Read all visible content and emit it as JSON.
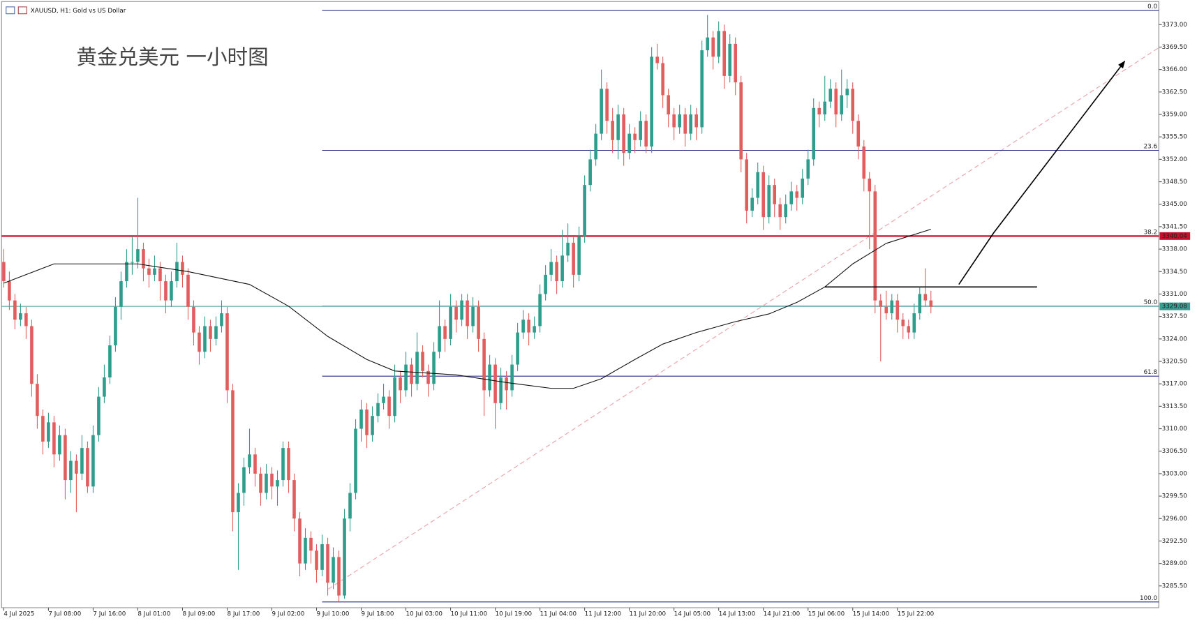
{
  "header": "XAUUSD, H1:  Gold vs US Dollar",
  "chart_data": {
    "type": "candlestick",
    "title": "黄金兑美元 一小时图",
    "up_color": "#2e9d8c",
    "down_color": "#e25d5d",
    "categories": [
      "4 Jul 2025",
      null,
      null,
      null,
      null,
      null,
      null,
      null,
      "7 Jul 08:00",
      null,
      null,
      null,
      null,
      null,
      null,
      null,
      "7 Jul 16:00",
      null,
      null,
      null,
      null,
      null,
      null,
      null,
      "8 Jul 01:00",
      null,
      null,
      null,
      null,
      null,
      null,
      null,
      "8 Jul 09:00",
      null,
      null,
      null,
      null,
      null,
      null,
      null,
      "8 Jul 17:00",
      null,
      null,
      null,
      null,
      null,
      null,
      null,
      "9 Jul 02:00",
      null,
      null,
      null,
      null,
      null,
      null,
      null,
      "9 Jul 10:00",
      null,
      null,
      null,
      null,
      null,
      null,
      null,
      "9 Jul 18:00",
      null,
      null,
      null,
      null,
      null,
      null,
      null,
      "10 Jul 03:00",
      null,
      null,
      null,
      null,
      null,
      null,
      null,
      "10 Jul 11:00",
      null,
      null,
      null,
      null,
      null,
      null,
      null,
      "10 Jul 19:00",
      null,
      null,
      null,
      null,
      null,
      null,
      null,
      "11 Jul 04:00",
      null,
      null,
      null,
      null,
      null,
      null,
      null,
      "11 Jul 12:00",
      null,
      null,
      null,
      null,
      null,
      null,
      null,
      "11 Jul 20:00",
      null,
      null,
      null,
      null,
      null,
      null,
      null,
      "14 Jul 05:00",
      null,
      null,
      null,
      null,
      null,
      null,
      null,
      "14 Jul 13:00",
      null,
      null,
      null,
      null,
      null,
      null,
      null,
      "14 Jul 21:00",
      null,
      null,
      null,
      null,
      null,
      null,
      null,
      "15 Jul 06:00",
      null,
      null,
      null,
      null,
      null,
      null,
      null,
      "15 Jul 14:00",
      null,
      null,
      null,
      null,
      null,
      null,
      null,
      "15 Jul 22:00",
      null,
      null,
      null,
      null,
      null,
      null
    ],
    "ohlc": [
      [
        3336,
        3338,
        3332,
        3333
      ],
      [
        3333,
        3334.5,
        3328.5,
        3330
      ],
      [
        3330,
        3331,
        3325.5,
        3327
      ],
      [
        3327,
        3329.5,
        3326,
        3328
      ],
      [
        3328,
        3329,
        3324,
        3326
      ],
      [
        3326,
        3327,
        3315,
        3317
      ],
      [
        3317,
        3318.5,
        3310,
        3312
      ],
      [
        3312,
        3313,
        3306,
        3308
      ],
      [
        3308,
        3312.5,
        3307,
        3311
      ],
      [
        3311,
        3312,
        3304,
        3306
      ],
      [
        3306,
        3310.5,
        3305,
        3309
      ],
      [
        3309,
        3310,
        3299,
        3302
      ],
      [
        3302,
        3306.5,
        3300,
        3305
      ],
      [
        3305,
        3306,
        3297,
        3303
      ],
      [
        3303,
        3309,
        3302,
        3307
      ],
      [
        3307,
        3308,
        3300,
        3301
      ],
      [
        3301,
        3310.5,
        3300,
        3309
      ],
      [
        3309,
        3316.5,
        3308,
        3315
      ],
      [
        3315,
        3320,
        3314,
        3318
      ],
      [
        3318,
        3324.5,
        3317,
        3323
      ],
      [
        3323,
        3330.5,
        3322,
        3329
      ],
      [
        3329,
        3334.5,
        3327,
        3333
      ],
      [
        3333,
        3338,
        3332,
        3336
      ],
      [
        3336,
        3340,
        3334,
        3336
      ],
      [
        3336,
        3346,
        3335,
        3338
      ],
      [
        3338,
        3339,
        3333,
        3335
      ],
      [
        3335,
        3336.5,
        3332,
        3334
      ],
      [
        3334,
        3337,
        3333,
        3335
      ],
      [
        3335,
        3336,
        3330,
        3333
      ],
      [
        3333,
        3334,
        3328,
        3330
      ],
      [
        3330,
        3334.5,
        3329,
        3333
      ],
      [
        3333,
        3339,
        3332,
        3336
      ],
      [
        3336,
        3337,
        3332,
        3334
      ],
      [
        3334,
        3335,
        3327,
        3329
      ],
      [
        3329,
        3330,
        3323,
        3325
      ],
      [
        3325,
        3326,
        3320,
        3322
      ],
      [
        3322,
        3327.5,
        3321,
        3326
      ],
      [
        3326,
        3327,
        3322,
        3324
      ],
      [
        3324,
        3327.5,
        3323,
        3326
      ],
      [
        3326,
        3330,
        3325,
        3328
      ],
      [
        3328,
        3329,
        3314,
        3316
      ],
      [
        3316,
        3317,
        3294,
        3297
      ],
      [
        3297,
        3301.5,
        3288,
        3300
      ],
      [
        3300,
        3305.5,
        3298,
        3304
      ],
      [
        3304,
        3310,
        3303,
        3306
      ],
      [
        3306,
        3307,
        3301,
        3303
      ],
      [
        3303,
        3304,
        3298,
        3300
      ],
      [
        3300,
        3304.5,
        3299,
        3303
      ],
      [
        3303,
        3304,
        3299,
        3301
      ],
      [
        3301,
        3303.5,
        3298,
        3302
      ],
      [
        3302,
        3308,
        3301,
        3307
      ],
      [
        3307,
        3308,
        3300,
        3302
      ],
      [
        3302,
        3303,
        3294,
        3296
      ],
      [
        3296,
        3297,
        3287,
        3289
      ],
      [
        3289,
        3294.5,
        3288,
        3293
      ],
      [
        3293,
        3294,
        3289,
        3291
      ],
      [
        3291,
        3292,
        3286,
        3288
      ],
      [
        3288,
        3293.5,
        3287,
        3292
      ],
      [
        3292,
        3293,
        3284,
        3286
      ],
      [
        3286,
        3291.5,
        3285,
        3290
      ],
      [
        3290,
        3291,
        3283,
        3284
      ],
      [
        3284,
        3297.5,
        3283.5,
        3296
      ],
      [
        3296,
        3301.5,
        3294,
        3300
      ],
      [
        3300,
        3311.5,
        3299,
        3310
      ],
      [
        3310,
        3314.5,
        3308,
        3313
      ],
      [
        3313,
        3314,
        3307,
        3309
      ],
      [
        3309,
        3313.5,
        3308,
        3312
      ],
      [
        3312,
        3315.5,
        3311,
        3314
      ],
      [
        3314,
        3317,
        3313,
        3315
      ],
      [
        3315,
        3316,
        3310,
        3312
      ],
      [
        3312,
        3320,
        3311,
        3318
      ],
      [
        3318,
        3319,
        3314,
        3316
      ],
      [
        3316,
        3322,
        3315,
        3320
      ],
      [
        3320,
        3321,
        3315,
        3317
      ],
      [
        3317,
        3325,
        3316,
        3322
      ],
      [
        3322,
        3323,
        3318,
        3319
      ],
      [
        3319,
        3320,
        3315,
        3317
      ],
      [
        3317,
        3323.5,
        3316,
        3322
      ],
      [
        3322,
        3330,
        3321,
        3326
      ],
      [
        3326,
        3327,
        3322,
        3324
      ],
      [
        3324,
        3331,
        3323,
        3329
      ],
      [
        3329,
        3330,
        3325,
        3327
      ],
      [
        3327,
        3331,
        3326,
        3330
      ],
      [
        3330,
        3331,
        3324,
        3326
      ],
      [
        3326,
        3330.5,
        3325,
        3329
      ],
      [
        3329,
        3330,
        3322,
        3324
      ],
      [
        3324,
        3325,
        3312,
        3316
      ],
      [
        3316,
        3321.5,
        3315,
        3320
      ],
      [
        3320,
        3321,
        3310,
        3314
      ],
      [
        3314,
        3319.5,
        3313,
        3318
      ],
      [
        3318,
        3319,
        3313,
        3316
      ],
      [
        3316,
        3321.5,
        3315,
        3320
      ],
      [
        3320,
        3326.5,
        3319,
        3325
      ],
      [
        3325,
        3328.5,
        3324,
        3327
      ],
      [
        3327,
        3328,
        3323,
        3325
      ],
      [
        3325,
        3327.5,
        3324,
        3326
      ],
      [
        3326,
        3332.5,
        3325,
        3331
      ],
      [
        3331,
        3335.5,
        3330,
        3334
      ],
      [
        3334,
        3338,
        3333,
        3336
      ],
      [
        3336,
        3337,
        3331,
        3333
      ],
      [
        3333,
        3341,
        3332,
        3337
      ],
      [
        3337,
        3342,
        3336,
        3339
      ],
      [
        3339,
        3340,
        3332,
        3334
      ],
      [
        3334,
        3341.5,
        3333,
        3340
      ],
      [
        3340,
        3349.5,
        3339,
        3348
      ],
      [
        3348,
        3353.5,
        3347,
        3352
      ],
      [
        3352,
        3357.5,
        3351,
        3356
      ],
      [
        3356,
        3366,
        3355,
        3363
      ],
      [
        3363,
        3364,
        3356,
        3358
      ],
      [
        3358,
        3360,
        3353,
        3355
      ],
      [
        3355,
        3360.5,
        3352,
        3359
      ],
      [
        3359,
        3360,
        3351,
        3353
      ],
      [
        3353,
        3357.5,
        3352,
        3356
      ],
      [
        3356,
        3357,
        3353,
        3355
      ],
      [
        3355,
        3359.5,
        3354,
        3358
      ],
      [
        3358,
        3359,
        3353,
        3354
      ],
      [
        3354,
        3369.5,
        3353,
        3368
      ],
      [
        3368,
        3370,
        3366,
        3367
      ],
      [
        3367,
        3368,
        3360,
        3362
      ],
      [
        3362,
        3363,
        3357,
        3359
      ],
      [
        3359,
        3360,
        3355,
        3357
      ],
      [
        3357,
        3360.5,
        3356,
        3359
      ],
      [
        3359,
        3360,
        3354,
        3356
      ],
      [
        3356,
        3360.5,
        3355,
        3359
      ],
      [
        3359,
        3360,
        3355,
        3357
      ],
      [
        3357,
        3370.5,
        3356,
        3369
      ],
      [
        3369,
        3374.5,
        3368,
        3371
      ],
      [
        3371,
        3372,
        3366,
        3368
      ],
      [
        3368,
        3373.5,
        3367,
        3372
      ],
      [
        3372,
        3373,
        3363,
        3365
      ],
      [
        3365,
        3371.5,
        3364,
        3370
      ],
      [
        3370,
        3371,
        3362,
        3364
      ],
      [
        3364,
        3365,
        3350,
        3352
      ],
      [
        3352,
        3353,
        3342,
        3344
      ],
      [
        3344,
        3347.5,
        3343,
        3346
      ],
      [
        3346,
        3351.5,
        3345,
        3350
      ],
      [
        3350,
        3351,
        3341,
        3343
      ],
      [
        3343,
        3349.5,
        3342,
        3348
      ],
      [
        3348,
        3349,
        3343,
        3345
      ],
      [
        3345,
        3346,
        3341,
        3343
      ],
      [
        3343,
        3346.5,
        3342,
        3345
      ],
      [
        3345,
        3348.5,
        3344,
        3347
      ],
      [
        3347,
        3348,
        3344,
        3346
      ],
      [
        3346,
        3350.5,
        3345,
        3349
      ],
      [
        3349,
        3353.5,
        3348,
        3352
      ],
      [
        3352,
        3361.5,
        3351,
        3360
      ],
      [
        3360,
        3361,
        3357,
        3359
      ],
      [
        3359,
        3365,
        3358,
        3361
      ],
      [
        3361,
        3364.5,
        3360,
        3363
      ],
      [
        3363,
        3364,
        3357,
        3359
      ],
      [
        3359,
        3366,
        3358,
        3362
      ],
      [
        3362,
        3364.5,
        3360,
        3363
      ],
      [
        3363,
        3364,
        3356,
        3358
      ],
      [
        3358,
        3359,
        3352,
        3354
      ],
      [
        3354,
        3355,
        3347,
        3349
      ],
      [
        3349,
        3350,
        3338,
        3347
      ],
      [
        3347,
        3348,
        3328,
        3330
      ],
      [
        3330,
        3331,
        3320.5,
        3329
      ],
      [
        3329,
        3331.5,
        3327,
        3328
      ],
      [
        3328,
        3331,
        3327,
        3330
      ],
      [
        3330,
        3331,
        3325,
        3327
      ],
      [
        3327,
        3328,
        3324,
        3326
      ],
      [
        3326,
        3327,
        3324,
        3325
      ],
      [
        3325,
        3329.5,
        3324,
        3328
      ],
      [
        3328,
        3332,
        3327,
        3331
      ],
      [
        3331,
        3335,
        3329,
        3330
      ],
      [
        3330,
        3331.5,
        3328,
        3329
      ]
    ],
    "moving_average": {
      "color": "#111111",
      "x": [
        0,
        9,
        24,
        33,
        44,
        51,
        58,
        65,
        70,
        81,
        90,
        98,
        102,
        107,
        113,
        118,
        124,
        131,
        137,
        142,
        147,
        152,
        158,
        166
      ],
      "values": [
        3332.7,
        3335.7,
        3335.7,
        3334.5,
        3332.5,
        3329.1,
        3324.4,
        3320.8,
        3319.0,
        3318.4,
        3317.2,
        3316.3,
        3316.3,
        3317.8,
        3320.8,
        3323.2,
        3325.0,
        3326.7,
        3327.9,
        3329.7,
        3332.1,
        3335.7,
        3338.9,
        3341.1
      ]
    },
    "fibonacci": {
      "color": "#2b2b8a",
      "x_start": 57,
      "levels": [
        {
          "label": "0.0",
          "value": 3375.2
        },
        {
          "label": "23.6",
          "value": 3353.4
        },
        {
          "label": "38.2",
          "value": 3340.0
        },
        {
          "label": "50.0",
          "value": 3329.1
        },
        {
          "label": "61.8",
          "value": 3318.2
        },
        {
          "label": "100.0",
          "value": 3283.0
        }
      ]
    },
    "price_lines": [
      {
        "value": 3340.04,
        "color": "#c8102e"
      },
      {
        "value": 3329.08,
        "color": "#3a9d8f"
      }
    ],
    "trendline": {
      "color": "#e8a0a8",
      "x": [
        58.1,
        206.8
      ],
      "values": [
        3285.0,
        3369.4
      ]
    },
    "resistance_line": {
      "color": "#000000",
      "x": [
        147,
        185
      ],
      "values": [
        3332.1,
        3332.1
      ]
    },
    "arrow": {
      "color": "#000000",
      "x": [
        171,
        177.2,
        200.7
      ],
      "values": [
        3332.5,
        3340.5,
        3367.3
      ]
    },
    "xlim": [
      -0.4,
      206.8
    ],
    "ylim": [
      3282.1,
      3376.6
    ],
    "yticks": [
      {
        "value": 3373.0,
        "label": "3373.00"
      },
      {
        "value": 3369.5,
        "label": "3369.50"
      },
      {
        "value": 3366.0,
        "label": "3366.00"
      },
      {
        "value": 3362.5,
        "label": "3362.50"
      },
      {
        "value": 3359.0,
        "label": "3359.00"
      },
      {
        "value": 3355.5,
        "label": "3355.50"
      },
      {
        "value": 3352.0,
        "label": "3352.00"
      },
      {
        "value": 3348.5,
        "label": "3348.50"
      },
      {
        "value": 3345.0,
        "label": "3345.00"
      },
      {
        "value": 3341.5,
        "label": "3341.50"
      },
      {
        "value": 3338.0,
        "label": "3338.00"
      },
      {
        "value": 3334.5,
        "label": "3334.50"
      },
      {
        "value": 3331.0,
        "label": "3331.00"
      },
      {
        "value": 3327.5,
        "label": "3327.50"
      },
      {
        "value": 3324.0,
        "label": "3324.00"
      },
      {
        "value": 3320.5,
        "label": "3320.50"
      },
      {
        "value": 3317.0,
        "label": "3317.00"
      },
      {
        "value": 3313.5,
        "label": "3313.50"
      },
      {
        "value": 3310.0,
        "label": "3310.00"
      },
      {
        "value": 3306.5,
        "label": "3306.50"
      },
      {
        "value": 3303.0,
        "label": "3303.00"
      },
      {
        "value": 3299.5,
        "label": "3299.50"
      },
      {
        "value": 3296.0,
        "label": "3296.00"
      },
      {
        "value": 3292.5,
        "label": "3292.50"
      },
      {
        "value": 3289.0,
        "label": "3289.00"
      },
      {
        "value": 3285.5,
        "label": "3285.50"
      }
    ]
  }
}
